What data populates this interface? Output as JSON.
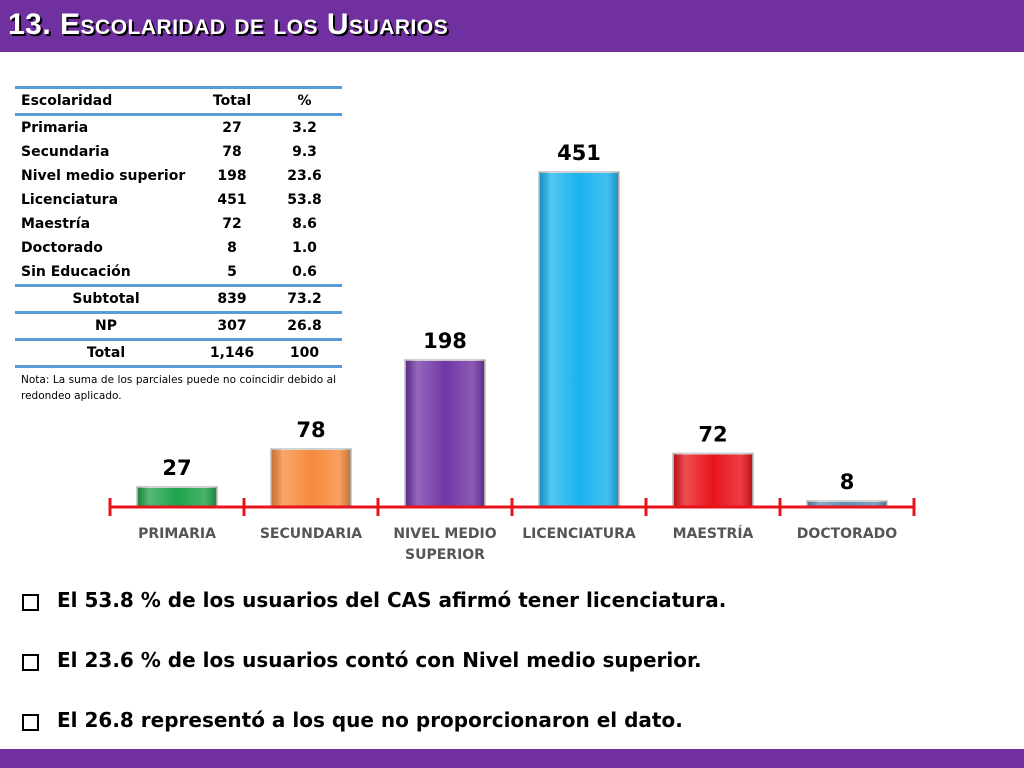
{
  "header": {
    "title": "13. Escolaridad de los Usuarios"
  },
  "table": {
    "columns": [
      "Escolaridad",
      "Total",
      "%"
    ],
    "rows": [
      [
        "Primaria",
        "27",
        "3.2"
      ],
      [
        "Secundaria",
        "78",
        "9.3"
      ],
      [
        "Nivel medio superior",
        "198",
        "23.6"
      ],
      [
        "Licenciatura",
        "451",
        "53.8"
      ],
      [
        "Maestría",
        "72",
        "8.6"
      ],
      [
        "Doctorado",
        "8",
        "1.0"
      ],
      [
        "Sin Educación",
        "5",
        "0.6"
      ]
    ],
    "summary": [
      [
        "Subtotal",
        "839",
        "73.2"
      ],
      [
        "NP",
        "307",
        "26.8"
      ],
      [
        "Total",
        "1,146",
        "100"
      ]
    ],
    "note": "Nota: La suma de los parciales puede no coincidir debido al redondeo aplicado."
  },
  "chart_data": {
    "type": "bar",
    "title": "",
    "xlabel": "",
    "ylabel": "",
    "categories": [
      "PRIMARIA",
      "SECUNDARIA",
      "NIVEL MEDIO SUPERIOR",
      "LICENCIATURA",
      "MAESTRÍA",
      "DOCTORADO"
    ],
    "category_lines": [
      [
        "PRIMARIA"
      ],
      [
        "SECUNDARIA"
      ],
      [
        "NIVEL MEDIO",
        "SUPERIOR"
      ],
      [
        "LICENCIATURA"
      ],
      [
        "MAESTRÍA"
      ],
      [
        "DOCTORADO"
      ]
    ],
    "values": [
      27,
      78,
      198,
      451,
      72,
      8
    ],
    "data_labels": [
      "27",
      "78",
      "198",
      "451",
      "72",
      "8"
    ],
    "colors": [
      "#1fa24a",
      "#f68a3c",
      "#7236a6",
      "#1ab3ee",
      "#e8141b",
      "#5f8fb4"
    ],
    "axis_color": "#e8141b",
    "ylim": [
      0,
      451
    ],
    "grid": false,
    "legend": "none"
  },
  "bullets": [
    "El 53.8 % de los usuarios del CAS afirmó tener licenciatura.",
    "El 23.6 % de los usuarios contó con Nivel medio superior.",
    "El 26.8 representó a los que no proporcionaron el dato."
  ]
}
